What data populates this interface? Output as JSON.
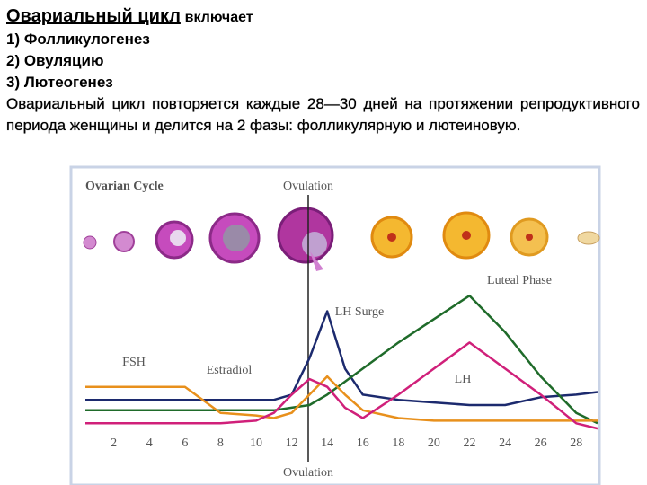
{
  "header": {
    "title": "Овариальный цикл",
    "suffix": "включает"
  },
  "list": [
    "1) Фолликулогенез",
    "2) Овуляцию",
    "3) Лютеогенез"
  ],
  "paragraph": "Овариальный цикл повторяется каждые 28—30 дней на протяжении репродуктивного периода женщины и делится на 2 фазы: фолликулярную и лютеиновую.",
  "chart_data": {
    "type": "line",
    "title": "Ovarian Cycle",
    "annotations": [
      "Ovulation",
      "Luteal Phase",
      "LH Surge",
      "FSH",
      "Estradiol",
      "LH",
      "Ovulation"
    ],
    "x": [
      0.4,
      2,
      4,
      6,
      8,
      10,
      11,
      12,
      13,
      14,
      15,
      16,
      18,
      20,
      22,
      24,
      26,
      28,
      29.2
    ],
    "xlim": [
      0.4,
      29.2
    ],
    "xticks": [
      2,
      4,
      6,
      8,
      10,
      12,
      14,
      16,
      18,
      20,
      22,
      24,
      26,
      28
    ],
    "ylim": [
      0,
      100
    ],
    "series": [
      {
        "color": "#1c2a6e",
        "values": [
          12,
          12,
          12,
          12,
          12,
          12,
          12,
          14,
          28,
          46,
          24,
          14,
          12,
          11,
          10,
          10,
          13,
          14,
          15
        ]
      },
      {
        "color": "#1f6b2a",
        "values": [
          8,
          8,
          8,
          8,
          8,
          8,
          8,
          9,
          10,
          14,
          19,
          24,
          34,
          43,
          52,
          38,
          21,
          7,
          3
        ]
      },
      {
        "color": "#e8901c",
        "values": [
          17,
          17,
          17,
          17,
          7,
          6,
          5,
          7,
          14,
          21,
          14,
          8,
          5,
          4,
          4,
          4,
          4,
          4,
          4
        ]
      },
      {
        "color": "#d0207a",
        "values": [
          3,
          3,
          3,
          3,
          3,
          4,
          7,
          14,
          20,
          17,
          9,
          5,
          14,
          24,
          34,
          24,
          14,
          3,
          1
        ]
      }
    ]
  }
}
